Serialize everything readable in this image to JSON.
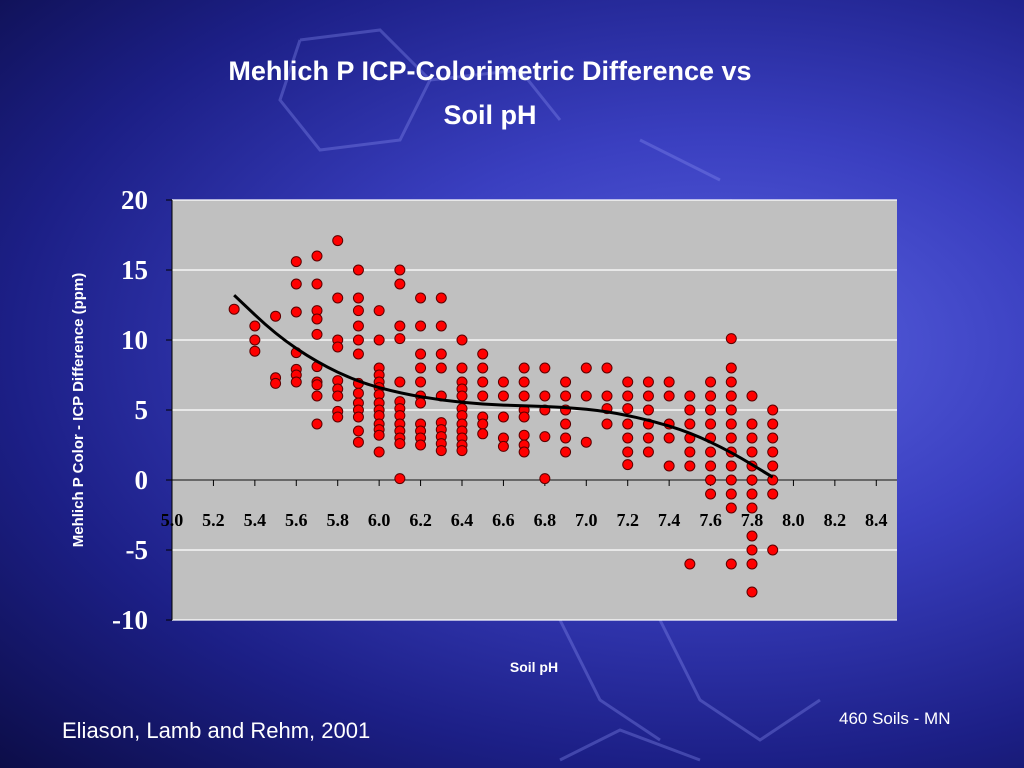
{
  "slide": {
    "title_line1": "Mehlich P ICP-Colorimetric Difference    vs",
    "title_line2": "Soil pH",
    "citation": "Eliason, Lamb and Rehm, 2001",
    "sample_note": "460 Soils - MN"
  },
  "colors": {
    "background": "#2a2fb0",
    "plot_area": "#c0c0c0",
    "point_fill": "#ff0000",
    "point_stroke": "#5a0000",
    "trend_line": "#000000",
    "text": "#ffffff"
  },
  "chart_data": {
    "type": "scatter",
    "title": "Mehlich P ICP-Colorimetric Difference    vs Soil pH",
    "xlabel": "Soil pH",
    "ylabel": "Mehlich P Color - ICP Difference (ppm)",
    "xlim": [
      5.0,
      8.5
    ],
    "ylim": [
      -10,
      20
    ],
    "x_ticks": [
      "5.0",
      "5.2",
      "5.4",
      "5.6",
      "5.8",
      "6.0",
      "6.2",
      "6.4",
      "6.6",
      "6.8",
      "7.0",
      "7.2",
      "7.4",
      "7.6",
      "7.8",
      "8.0",
      "8.2",
      "8.4"
    ],
    "y_ticks": [
      "20",
      "15",
      "10",
      "5",
      "0",
      "-5",
      "-10"
    ],
    "grid": "horizontal",
    "legend": "none",
    "series": [
      {
        "points": [
          [
            5.3,
            12.2
          ],
          [
            5.4,
            11.0
          ],
          [
            5.4,
            10.0
          ],
          [
            5.4,
            9.2
          ],
          [
            5.5,
            11.7
          ],
          [
            5.5,
            7.3
          ],
          [
            5.5,
            6.9
          ],
          [
            5.6,
            15.6
          ],
          [
            5.6,
            14.0
          ],
          [
            5.6,
            12.0
          ],
          [
            5.6,
            9.1
          ],
          [
            5.6,
            7.9
          ],
          [
            5.6,
            7.5
          ],
          [
            5.6,
            7.0
          ],
          [
            5.7,
            16.0
          ],
          [
            5.7,
            14.0
          ],
          [
            5.7,
            12.1
          ],
          [
            5.7,
            11.5
          ],
          [
            5.7,
            10.4
          ],
          [
            5.7,
            8.1
          ],
          [
            5.7,
            7.0
          ],
          [
            5.7,
            6.8
          ],
          [
            5.7,
            6.0
          ],
          [
            5.7,
            4.0
          ],
          [
            5.8,
            17.1
          ],
          [
            5.8,
            13.0
          ],
          [
            5.8,
            10.0
          ],
          [
            5.8,
            9.5
          ],
          [
            5.8,
            7.1
          ],
          [
            5.8,
            6.5
          ],
          [
            5.8,
            6.0
          ],
          [
            5.8,
            4.9
          ],
          [
            5.8,
            4.5
          ],
          [
            5.9,
            15.0
          ],
          [
            5.9,
            13.0
          ],
          [
            5.9,
            12.1
          ],
          [
            5.9,
            11.0
          ],
          [
            5.9,
            10.0
          ],
          [
            5.9,
            9.0
          ],
          [
            5.9,
            6.9
          ],
          [
            5.9,
            6.2
          ],
          [
            5.9,
            5.5
          ],
          [
            5.9,
            5.0
          ],
          [
            5.9,
            4.5
          ],
          [
            5.9,
            3.5
          ],
          [
            5.9,
            2.7
          ],
          [
            6.0,
            12.1
          ],
          [
            6.0,
            10.0
          ],
          [
            6.0,
            8.0
          ],
          [
            6.0,
            7.5
          ],
          [
            6.0,
            7.0
          ],
          [
            6.0,
            6.6
          ],
          [
            6.0,
            6.1
          ],
          [
            6.0,
            5.5
          ],
          [
            6.0,
            5.0
          ],
          [
            6.0,
            4.6
          ],
          [
            6.0,
            4.0
          ],
          [
            6.0,
            3.6
          ],
          [
            6.0,
            3.2
          ],
          [
            6.0,
            2.0
          ],
          [
            6.1,
            15.0
          ],
          [
            6.1,
            14.0
          ],
          [
            6.1,
            11.0
          ],
          [
            6.1,
            10.1
          ],
          [
            6.1,
            7.0
          ],
          [
            6.1,
            5.6
          ],
          [
            6.1,
            5.1
          ],
          [
            6.1,
            4.6
          ],
          [
            6.1,
            4.0
          ],
          [
            6.1,
            3.5
          ],
          [
            6.1,
            3.0
          ],
          [
            6.1,
            2.6
          ],
          [
            6.1,
            0.1
          ],
          [
            6.2,
            13.0
          ],
          [
            6.2,
            11.0
          ],
          [
            6.2,
            9.0
          ],
          [
            6.2,
            8.0
          ],
          [
            6.2,
            7.0
          ],
          [
            6.2,
            6.0
          ],
          [
            6.2,
            5.5
          ],
          [
            6.2,
            4.0
          ],
          [
            6.2,
            3.5
          ],
          [
            6.2,
            3.0
          ],
          [
            6.2,
            2.5
          ],
          [
            6.3,
            13.0
          ],
          [
            6.3,
            11.0
          ],
          [
            6.3,
            9.0
          ],
          [
            6.3,
            8.0
          ],
          [
            6.3,
            6.0
          ],
          [
            6.3,
            4.1
          ],
          [
            6.3,
            3.6
          ],
          [
            6.3,
            3.1
          ],
          [
            6.3,
            2.6
          ],
          [
            6.3,
            2.1
          ],
          [
            6.4,
            10.0
          ],
          [
            6.4,
            8.0
          ],
          [
            6.4,
            7.0
          ],
          [
            6.4,
            6.5
          ],
          [
            6.4,
            6.0
          ],
          [
            6.4,
            5.1
          ],
          [
            6.4,
            4.6
          ],
          [
            6.4,
            4.0
          ],
          [
            6.4,
            3.5
          ],
          [
            6.4,
            3.0
          ],
          [
            6.4,
            2.5
          ],
          [
            6.4,
            2.1
          ],
          [
            6.5,
            9.0
          ],
          [
            6.5,
            8.0
          ],
          [
            6.5,
            7.0
          ],
          [
            6.5,
            6.0
          ],
          [
            6.5,
            4.5
          ],
          [
            6.5,
            4.0
          ],
          [
            6.5,
            3.3
          ],
          [
            6.6,
            7.0
          ],
          [
            6.6,
            6.0
          ],
          [
            6.6,
            4.5
          ],
          [
            6.6,
            3.0
          ],
          [
            6.6,
            2.4
          ],
          [
            6.7,
            8.0
          ],
          [
            6.7,
            7.0
          ],
          [
            6.7,
            6.0
          ],
          [
            6.7,
            5.0
          ],
          [
            6.7,
            4.5
          ],
          [
            6.7,
            3.2
          ],
          [
            6.7,
            2.5
          ],
          [
            6.7,
            2.0
          ],
          [
            6.8,
            8.0
          ],
          [
            6.8,
            6.0
          ],
          [
            6.8,
            5.0
          ],
          [
            6.8,
            3.1
          ],
          [
            6.8,
            0.1
          ],
          [
            6.9,
            7.0
          ],
          [
            6.9,
            6.0
          ],
          [
            6.9,
            5.0
          ],
          [
            6.9,
            4.0
          ],
          [
            6.9,
            3.0
          ],
          [
            6.9,
            2.0
          ],
          [
            7.0,
            8.0
          ],
          [
            7.0,
            6.0
          ],
          [
            7.0,
            2.7
          ],
          [
            7.1,
            8.0
          ],
          [
            7.1,
            6.0
          ],
          [
            7.1,
            5.1
          ],
          [
            7.1,
            4.0
          ],
          [
            7.2,
            7.0
          ],
          [
            7.2,
            6.0
          ],
          [
            7.2,
            5.1
          ],
          [
            7.2,
            4.0
          ],
          [
            7.2,
            3.0
          ],
          [
            7.2,
            2.0
          ],
          [
            7.2,
            1.1
          ],
          [
            7.3,
            7.0
          ],
          [
            7.3,
            6.0
          ],
          [
            7.3,
            5.0
          ],
          [
            7.3,
            4.0
          ],
          [
            7.3,
            3.0
          ],
          [
            7.3,
            2.0
          ],
          [
            7.4,
            7.0
          ],
          [
            7.4,
            6.0
          ],
          [
            7.4,
            4.0
          ],
          [
            7.4,
            3.0
          ],
          [
            7.4,
            1.0
          ],
          [
            7.5,
            6.0
          ],
          [
            7.5,
            5.0
          ],
          [
            7.5,
            4.0
          ],
          [
            7.5,
            3.0
          ],
          [
            7.5,
            2.0
          ],
          [
            7.5,
            1.0
          ],
          [
            7.5,
            -6.0
          ],
          [
            7.6,
            7.0
          ],
          [
            7.6,
            6.0
          ],
          [
            7.6,
            5.0
          ],
          [
            7.6,
            4.0
          ],
          [
            7.6,
            3.0
          ],
          [
            7.6,
            2.0
          ],
          [
            7.6,
            1.0
          ],
          [
            7.6,
            0.0
          ],
          [
            7.6,
            -1.0
          ],
          [
            7.7,
            10.1
          ],
          [
            7.7,
            8.0
          ],
          [
            7.7,
            7.0
          ],
          [
            7.7,
            6.0
          ],
          [
            7.7,
            5.0
          ],
          [
            7.7,
            4.0
          ],
          [
            7.7,
            3.0
          ],
          [
            7.7,
            2.0
          ],
          [
            7.7,
            1.0
          ],
          [
            7.7,
            0.0
          ],
          [
            7.7,
            -1.0
          ],
          [
            7.7,
            -2.0
          ],
          [
            7.7,
            -6.0
          ],
          [
            7.8,
            6.0
          ],
          [
            7.8,
            4.0
          ],
          [
            7.8,
            3.0
          ],
          [
            7.8,
            2.0
          ],
          [
            7.8,
            1.0
          ],
          [
            7.8,
            0.0
          ],
          [
            7.8,
            -1.0
          ],
          [
            7.8,
            -2.0
          ],
          [
            7.8,
            -4.0
          ],
          [
            7.8,
            -5.0
          ],
          [
            7.8,
            -6.0
          ],
          [
            7.8,
            -8.0
          ],
          [
            7.9,
            5.0
          ],
          [
            7.9,
            4.0
          ],
          [
            7.9,
            3.0
          ],
          [
            7.9,
            2.0
          ],
          [
            7.9,
            1.0
          ],
          [
            7.9,
            0.0
          ],
          [
            7.9,
            -1.0
          ],
          [
            7.9,
            -5.0
          ]
        ]
      }
    ],
    "trendline": {
      "type": "polynomial",
      "points": [
        [
          5.3,
          13.2
        ],
        [
          5.5,
          10.4
        ],
        [
          5.7,
          8.4
        ],
        [
          5.9,
          7.0
        ],
        [
          6.1,
          6.2
        ],
        [
          6.3,
          5.7
        ],
        [
          6.5,
          5.4
        ],
        [
          6.7,
          5.3
        ],
        [
          6.9,
          5.2
        ],
        [
          7.1,
          4.9
        ],
        [
          7.3,
          4.3
        ],
        [
          7.5,
          3.4
        ],
        [
          7.7,
          2.0
        ],
        [
          7.9,
          0.2
        ]
      ]
    }
  }
}
